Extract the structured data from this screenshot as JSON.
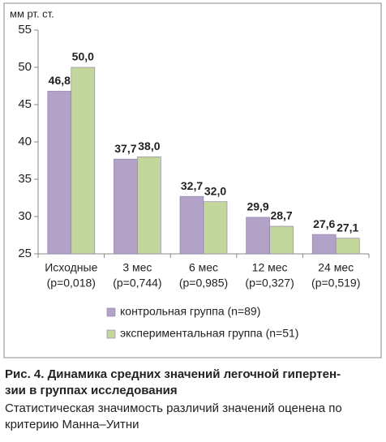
{
  "chart_data": {
    "type": "bar",
    "y_axis_label": "мм рт. ст.",
    "categories": [
      "Исходные",
      "3 мес",
      "6 мес",
      "12 мес",
      "24 мес"
    ],
    "category_notes": [
      "(p=0,018)",
      "(p=0,744)",
      "(p=0,985)",
      "(p=0,327)",
      "(p=0,519)"
    ],
    "series": [
      {
        "name": "контрольная группа (n=89)",
        "color": "#b3a2c7",
        "values": [
          46.8,
          37.7,
          32.7,
          29.9,
          27.6
        ],
        "value_labels": [
          "46,8",
          "37,7",
          "32,7",
          "29,9",
          "27,6"
        ]
      },
      {
        "name": "экспериментальная группа (n=51)",
        "color": "#c3d69b",
        "values": [
          50.0,
          38.0,
          32.0,
          28.7,
          27.1
        ],
        "value_labels": [
          "50,0",
          "38,0",
          "32,0",
          "28,7",
          "27,1"
        ]
      }
    ],
    "ylim": [
      25,
      55
    ],
    "yticks": [
      25,
      30,
      35,
      40,
      45,
      50,
      55
    ],
    "grid": false
  },
  "caption": {
    "title_lines": [
      "Рис. 4. Динамика средних значений легочной гипертен-",
      "зии в группах исследования"
    ],
    "text_lines": [
      "Статистическая значимость различий значений оценена по",
      "критерию Манна–Уитни"
    ]
  }
}
